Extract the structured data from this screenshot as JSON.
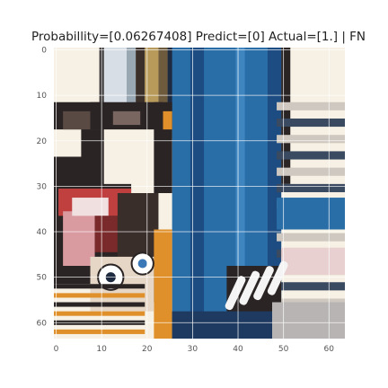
{
  "chart_data": {
    "type": "heatmap",
    "title": "Probabillity=[0.06267408] Predict=[0] Actual=[1.] | FN",
    "xlabel": "",
    "ylabel": "",
    "xlim": [
      0,
      63
    ],
    "ylim": [
      63,
      0
    ],
    "x_ticks": [
      0,
      10,
      20,
      30,
      40,
      50,
      60
    ],
    "y_ticks": [
      0,
      10,
      20,
      30,
      40,
      50,
      60
    ],
    "x_tick_labels": [
      "0",
      "10",
      "20",
      "30",
      "40",
      "50",
      "60"
    ],
    "y_tick_labels": [
      "0",
      "10",
      "20",
      "30",
      "40",
      "50",
      "60"
    ],
    "grid": true,
    "image_size": [
      64,
      64
    ],
    "colors": {
      "blue_panel": "#2a6ea8",
      "dark": "#2a2424",
      "cream": "#f6f1e4",
      "orange": "#e0902a",
      "red": "#c04040",
      "pink": "#d99aa0",
      "grid": "#ffffff"
    }
  }
}
